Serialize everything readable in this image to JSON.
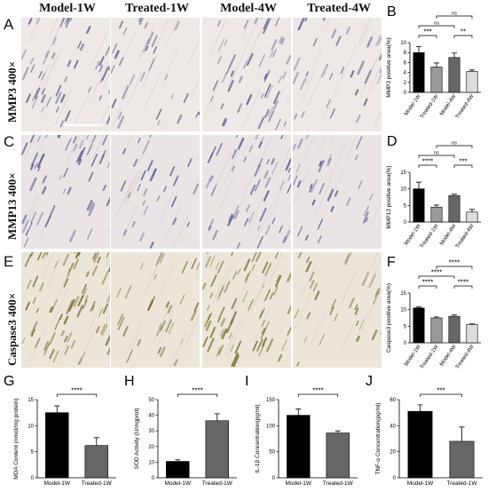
{
  "column_headers": [
    "Model-1W",
    "Treated-1W",
    "Model-4W",
    "Treated-4W"
  ],
  "row_labels": [
    "MMP3 400×",
    "MMP13 400×",
    "Caspase3 400×"
  ],
  "image_panel_letters": [
    "A",
    "C",
    "E"
  ],
  "chart_data": [
    {
      "letter": "B",
      "type": "bar",
      "categories": [
        "Model-1W",
        "Treated-1W",
        "Model-4W",
        "Treated-4W"
      ],
      "values": [
        8.0,
        5.1,
        7.0,
        4.2
      ],
      "errors": [
        1.2,
        0.8,
        0.9,
        0.3
      ],
      "ylabel": "MMP3 positive area(%)",
      "ylim": [
        0,
        10
      ],
      "yticks": [
        0,
        2,
        4,
        6,
        8,
        10
      ],
      "colors": [
        "#000000",
        "#999999",
        "#666666",
        "#dddddd"
      ],
      "brackets": [
        {
          "from": 0,
          "to": 1,
          "label": "***",
          "level": 0
        },
        {
          "from": 2,
          "to": 3,
          "label": "**",
          "level": 0
        },
        {
          "from": 0,
          "to": 2,
          "label": "ns",
          "level": 1
        },
        {
          "from": 1,
          "to": 3,
          "label": "ns",
          "level": 2
        }
      ]
    },
    {
      "letter": "D",
      "type": "bar",
      "categories": [
        "Model-1W",
        "Treated-1W",
        "Model-4W",
        "Treated-4W"
      ],
      "values": [
        10.0,
        4.5,
        8.0,
        3.0
      ],
      "errors": [
        2.0,
        0.6,
        0.4,
        0.8
      ],
      "ylabel": "MMP13 positive area(%)",
      "ylim": [
        0,
        15
      ],
      "yticks": [
        0,
        5,
        10,
        15
      ],
      "colors": [
        "#000000",
        "#999999",
        "#666666",
        "#dddddd"
      ],
      "brackets": [
        {
          "from": 0,
          "to": 1,
          "label": "****",
          "level": 0
        },
        {
          "from": 2,
          "to": 3,
          "label": "***",
          "level": 0
        },
        {
          "from": 0,
          "to": 2,
          "label": "ns",
          "level": 1
        },
        {
          "from": 1,
          "to": 3,
          "label": "ns",
          "level": 2
        }
      ]
    },
    {
      "letter": "F",
      "type": "bar",
      "categories": [
        "Model-1W",
        "Treated-1W",
        "Model-4W",
        "Treated-4W"
      ],
      "values": [
        10.5,
        7.5,
        8.0,
        5.5
      ],
      "errors": [
        0.3,
        0.3,
        0.4,
        0.2
      ],
      "ylabel": "Caspase3 positive area(%)",
      "ylim": [
        0,
        15
      ],
      "yticks": [
        0,
        5,
        10,
        15
      ],
      "colors": [
        "#000000",
        "#999999",
        "#666666",
        "#dddddd"
      ],
      "brackets": [
        {
          "from": 0,
          "to": 1,
          "label": "****",
          "level": 0
        },
        {
          "from": 2,
          "to": 3,
          "label": "****",
          "level": 0
        },
        {
          "from": 0,
          "to": 2,
          "label": "****",
          "level": 1
        },
        {
          "from": 1,
          "to": 3,
          "label": "****",
          "level": 2
        }
      ]
    },
    {
      "letter": "G",
      "type": "bar",
      "categories": [
        "Model-1W",
        "Treated-1W"
      ],
      "values": [
        12.5,
        6.2
      ],
      "errors": [
        1.3,
        1.5
      ],
      "ylabel": "MDA Content (nmol/mg protein)",
      "ylim": [
        0,
        15
      ],
      "yticks": [
        0,
        5,
        10,
        15
      ],
      "colors": [
        "#000000",
        "#666666"
      ],
      "brackets": [
        {
          "from": 0,
          "to": 1,
          "label": "****",
          "level": 0
        }
      ]
    },
    {
      "letter": "H",
      "type": "bar",
      "categories": [
        "Model-1W",
        "Treated-1W"
      ],
      "values": [
        10.5,
        36.5
      ],
      "errors": [
        1.0,
        4.5
      ],
      "ylabel": "SOD Activity (U/mgprot)",
      "ylim": [
        0,
        50
      ],
      "yticks": [
        0,
        10,
        20,
        30,
        40,
        50
      ],
      "colors": [
        "#000000",
        "#666666"
      ],
      "brackets": [
        {
          "from": 0,
          "to": 1,
          "label": "****",
          "level": 0
        }
      ]
    },
    {
      "letter": "I",
      "type": "bar",
      "categories": [
        "Model-1W",
        "Treated-1W"
      ],
      "values": [
        120,
        86
      ],
      "errors": [
        12,
        4
      ],
      "ylabel": "IL-1β Concentration(pg/ml)",
      "ylim": [
        0,
        150
      ],
      "yticks": [
        0,
        50,
        100,
        150
      ],
      "colors": [
        "#000000",
        "#666666"
      ],
      "brackets": [
        {
          "from": 0,
          "to": 1,
          "label": "****",
          "level": 0
        }
      ]
    },
    {
      "letter": "J",
      "type": "bar",
      "categories": [
        "Model-1W",
        "Treated-1W"
      ],
      "values": [
        51,
        28
      ],
      "errors": [
        5,
        11
      ],
      "ylabel": "TNF-α Concentration(pg/ml)",
      "ylim": [
        0,
        60
      ],
      "yticks": [
        0,
        20,
        40,
        60
      ],
      "colors": [
        "#000000",
        "#666666"
      ],
      "brackets": [
        {
          "from": 0,
          "to": 1,
          "label": "***",
          "level": 0
        }
      ]
    }
  ]
}
